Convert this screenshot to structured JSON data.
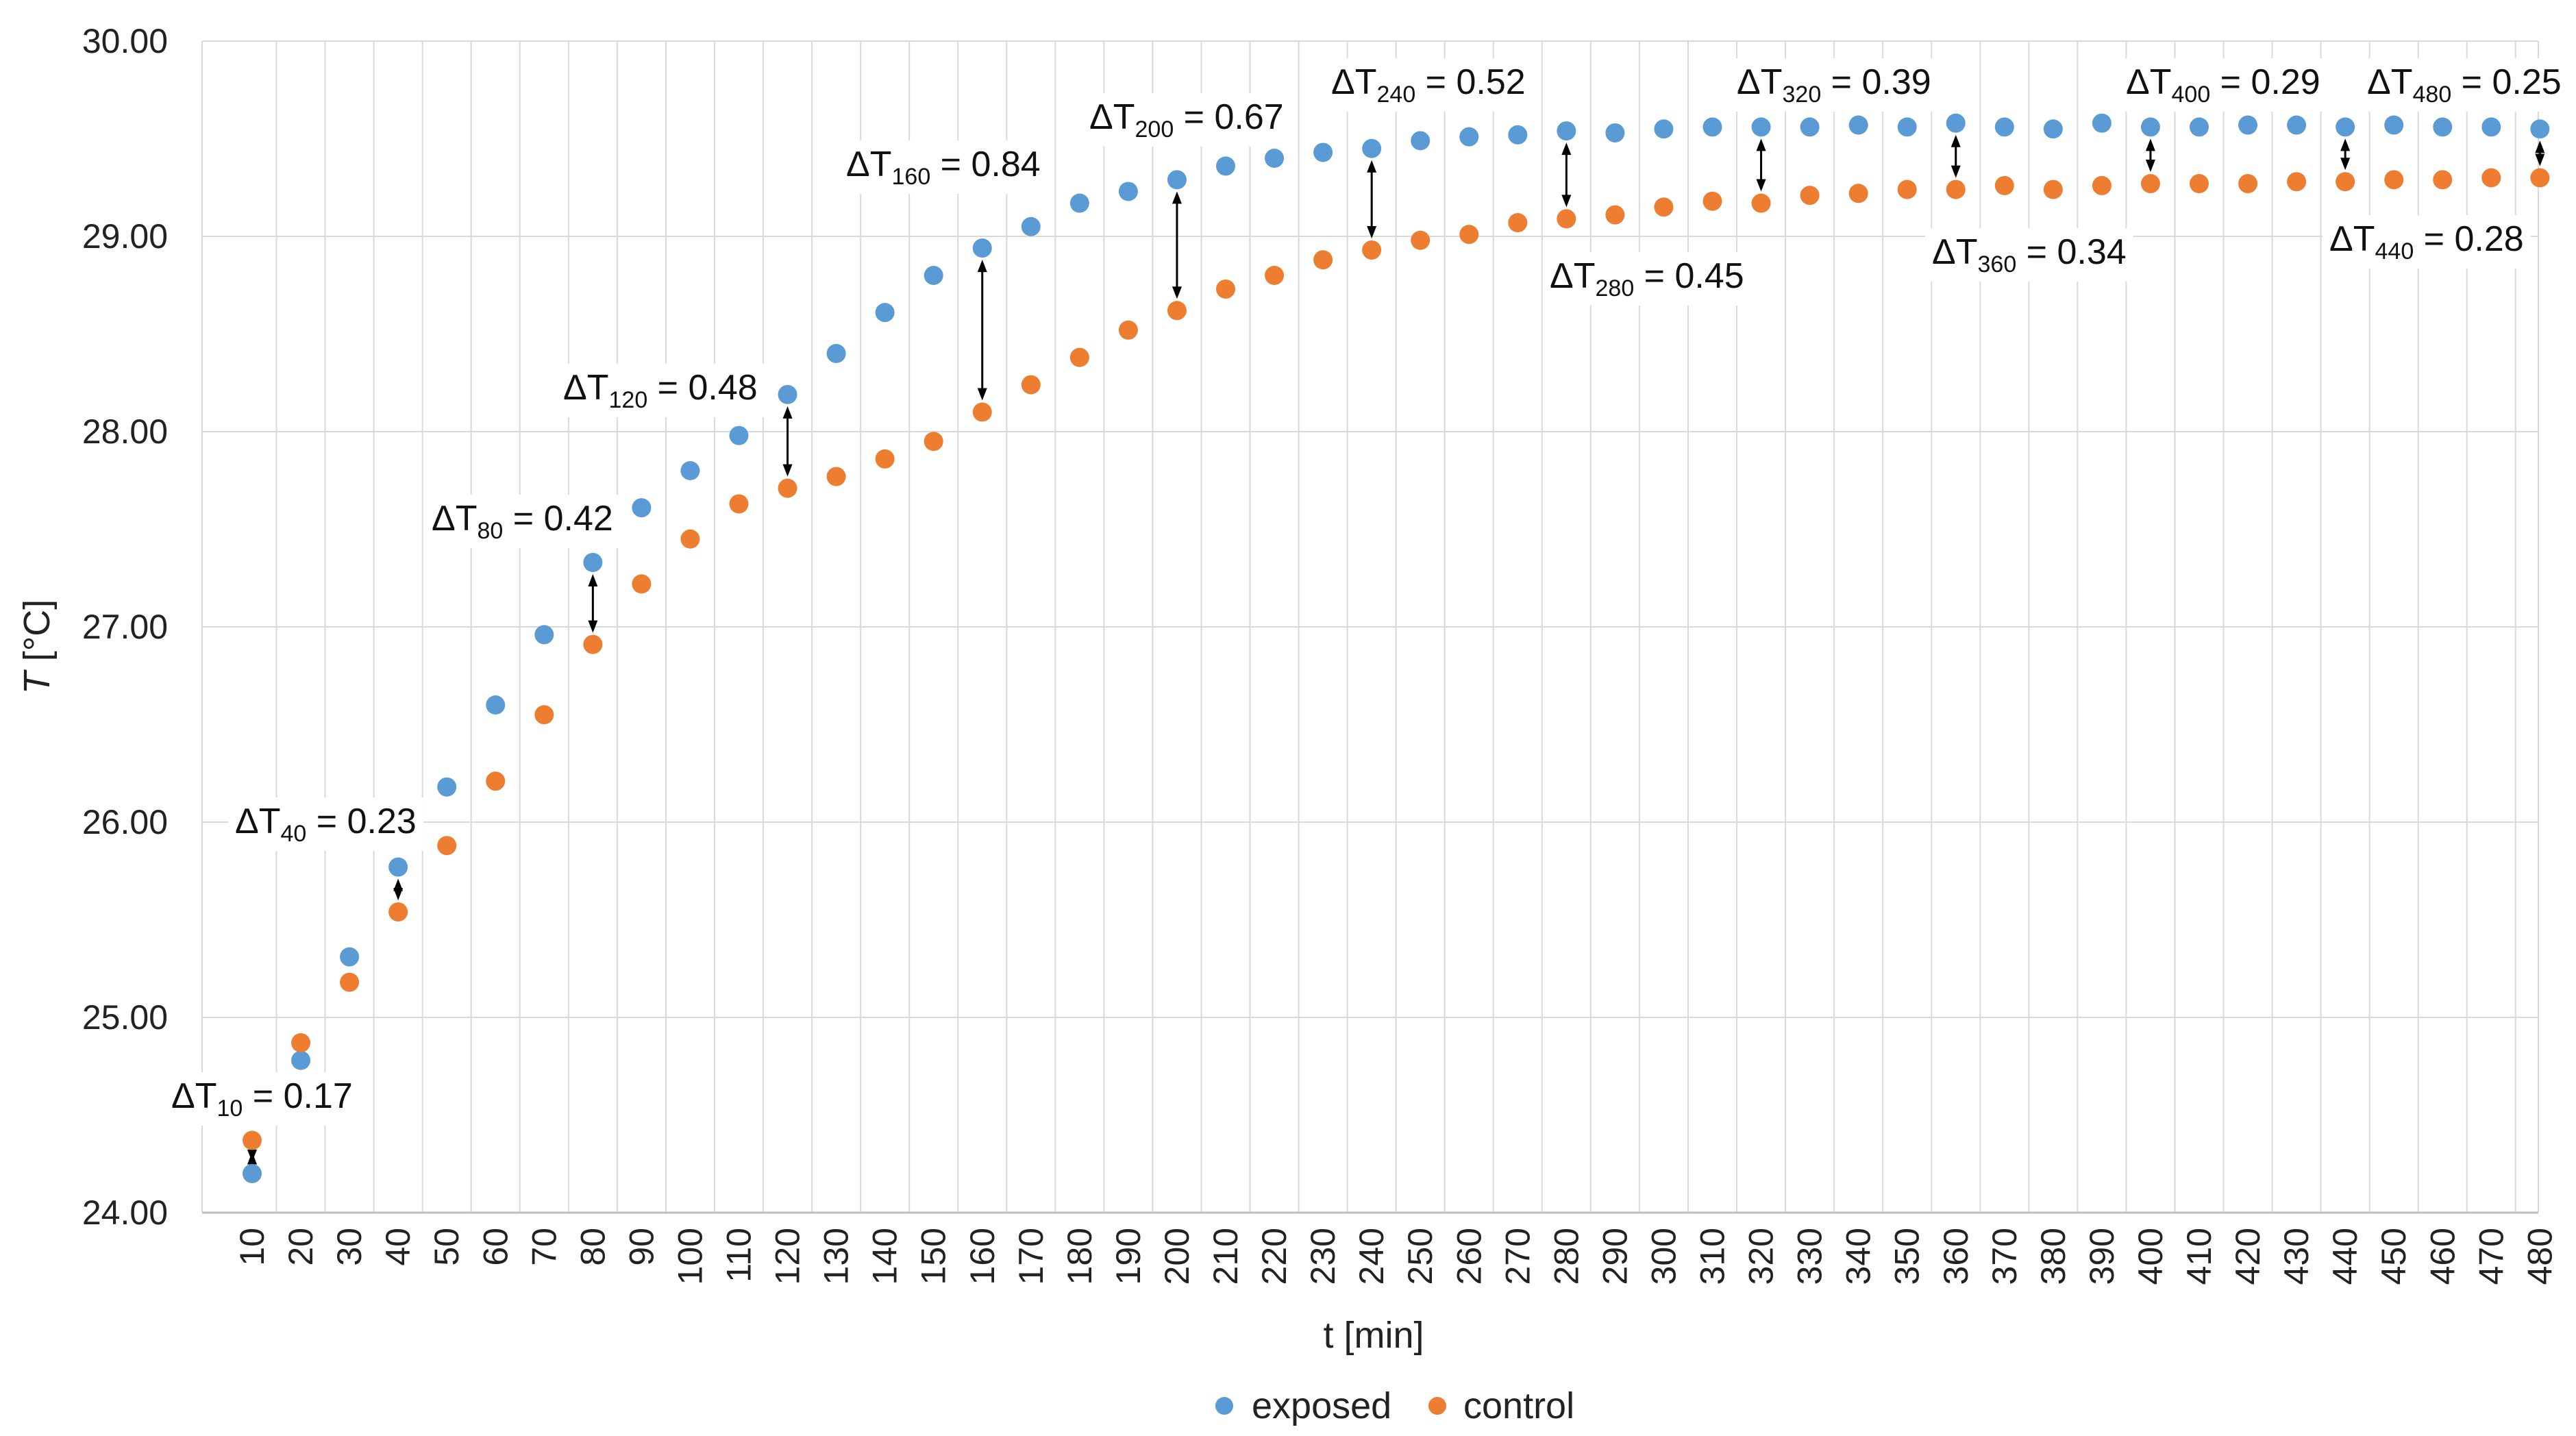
{
  "chart_data": {
    "type": "scatter",
    "xlabel": "t [min]",
    "ylabel_main": "T",
    "ylabel_unit": " [°C]",
    "ylim": [
      24,
      30
    ],
    "yticks": [
      24,
      25,
      26,
      27,
      28,
      29,
      30
    ],
    "ytick_labels": [
      "24.00",
      "25.00",
      "26.00",
      "27.00",
      "28.00",
      "29.00",
      "30.00"
    ],
    "x": [
      10,
      20,
      30,
      40,
      50,
      60,
      70,
      80,
      90,
      100,
      110,
      120,
      130,
      140,
      150,
      160,
      170,
      180,
      190,
      200,
      210,
      220,
      230,
      240,
      250,
      260,
      270,
      280,
      290,
      300,
      310,
      320,
      330,
      340,
      350,
      360,
      370,
      380,
      390,
      400,
      410,
      420,
      430,
      440,
      450,
      460,
      470,
      480
    ],
    "grid": true,
    "legend_position": "bottom",
    "series": [
      {
        "name": "exposed",
        "color": "#5B9BD5",
        "values": [
          24.2,
          24.78,
          25.31,
          25.77,
          26.18,
          26.6,
          26.96,
          27.33,
          27.61,
          27.8,
          27.98,
          28.19,
          28.4,
          28.61,
          28.8,
          28.94,
          29.05,
          29.17,
          29.23,
          29.29,
          29.36,
          29.4,
          29.43,
          29.45,
          29.49,
          29.51,
          29.52,
          29.54,
          29.53,
          29.55,
          29.56,
          29.56,
          29.56,
          29.57,
          29.56,
          29.58,
          29.56,
          29.55,
          29.58,
          29.56,
          29.56,
          29.57,
          29.57,
          29.56,
          29.57,
          29.56,
          29.56,
          29.55
        ]
      },
      {
        "name": "control",
        "color": "#ED7D31",
        "values": [
          24.37,
          24.87,
          25.18,
          25.54,
          25.88,
          26.21,
          26.55,
          26.91,
          27.22,
          27.45,
          27.63,
          27.71,
          27.77,
          27.86,
          27.95,
          28.1,
          28.24,
          28.38,
          28.52,
          28.62,
          28.73,
          28.8,
          28.88,
          28.93,
          28.98,
          29.01,
          29.07,
          29.09,
          29.11,
          29.15,
          29.18,
          29.17,
          29.21,
          29.22,
          29.24,
          29.24,
          29.26,
          29.24,
          29.26,
          29.27,
          29.27,
          29.27,
          29.28,
          29.28,
          29.29,
          29.29,
          29.3,
          29.3
        ]
      }
    ],
    "annotations": [
      {
        "pre": "ΔT",
        "sub": "10",
        "post": " = 0.17",
        "x": 10
      },
      {
        "pre": "ΔT",
        "sub": "40",
        "post": " = 0.23",
        "x": 40
      },
      {
        "pre": "ΔT",
        "sub": "80",
        "post": " = 0.42",
        "x": 80
      },
      {
        "pre": "ΔT",
        "sub": "120",
        "post": " = 0.48",
        "x": 120
      },
      {
        "pre": "ΔT",
        "sub": "160",
        "post": " = 0.84",
        "x": 160
      },
      {
        "pre": "ΔT",
        "sub": "200",
        "post": " = 0.67",
        "x": 200
      },
      {
        "pre": "ΔT",
        "sub": "240",
        "post": " = 0.52",
        "x": 240
      },
      {
        "pre": "ΔT",
        "sub": "280",
        "post": " = 0.45",
        "x": 280
      },
      {
        "pre": "ΔT",
        "sub": "320",
        "post": " = 0.39",
        "x": 320
      },
      {
        "pre": "ΔT",
        "sub": "360",
        "post": " = 0.34",
        "x": 360
      },
      {
        "pre": "ΔT",
        "sub": "400",
        "post": " = 0.29",
        "x": 400
      },
      {
        "pre": "ΔT",
        "sub": "440",
        "post": " = 0.28",
        "x": 440
      },
      {
        "pre": "ΔT",
        "sub": "480",
        "post": " = 0.25",
        "x": 480
      }
    ]
  }
}
